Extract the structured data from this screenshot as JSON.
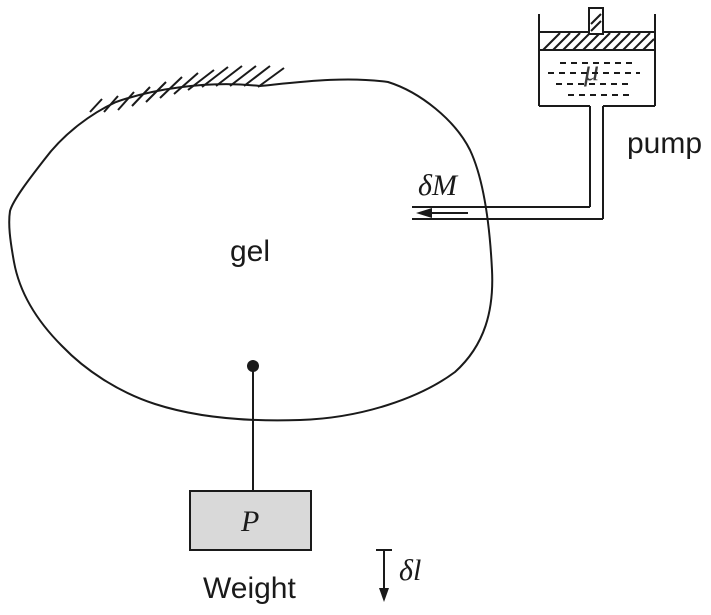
{
  "labels": {
    "gel": "gel",
    "pump": "pump",
    "flux": "δM",
    "chemical_potential": "μ",
    "load": "P",
    "weight": "Weight",
    "displacement": "δl"
  },
  "colors": {
    "line": "#1a1a1a",
    "weight_fill": "#d9d9d9",
    "background": "#ffffff"
  }
}
